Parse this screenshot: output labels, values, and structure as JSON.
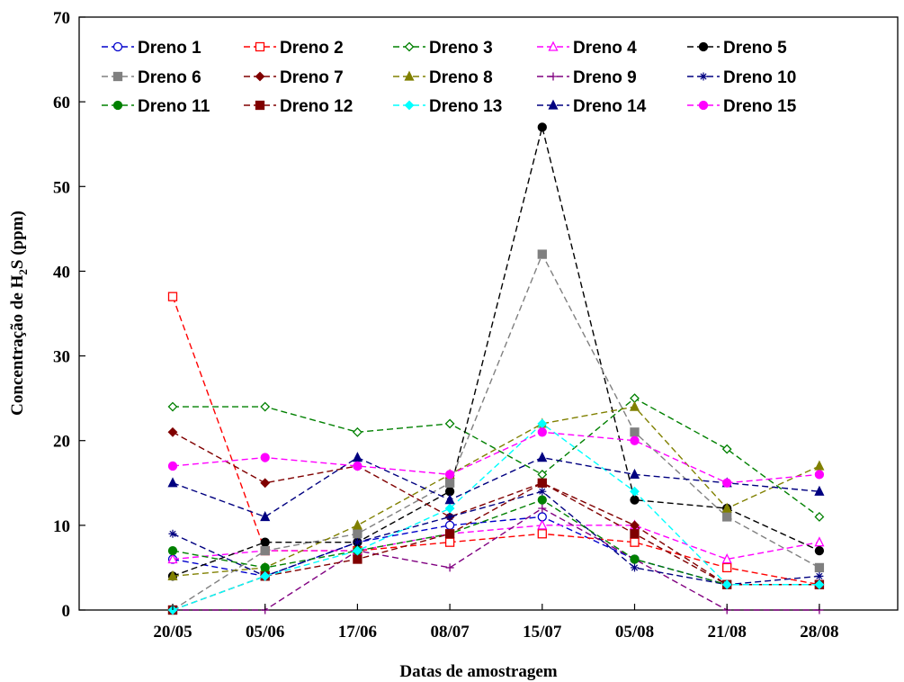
{
  "chart_data": {
    "type": "line",
    "title": "",
    "xlabel": "Datas de amostragem",
    "ylabel": {
      "prefix": "Concentração de H",
      "subscript": "2",
      "suffix": "S (ppm)"
    },
    "categories": [
      "20/05",
      "05/06",
      "17/06",
      "08/07",
      "15/07",
      "05/08",
      "21/08",
      "28/08"
    ],
    "ylim": [
      0,
      70
    ],
    "yticks": [
      0,
      10,
      20,
      30,
      40,
      50,
      60,
      70
    ],
    "grid": false,
    "legend_position": "top-left",
    "series": [
      {
        "name": "Dreno 1",
        "color": "#0000cc",
        "marker": "circle-open",
        "values": [
          6,
          4,
          8,
          10,
          11,
          6,
          3,
          3
        ]
      },
      {
        "name": "Dreno 2",
        "color": "#ff0000",
        "marker": "square-open",
        "values": [
          37,
          7,
          7,
          8,
          9,
          8,
          5,
          3
        ]
      },
      {
        "name": "Dreno 3",
        "color": "#008000",
        "marker": "diamond-open",
        "values": [
          24,
          24,
          21,
          22,
          16,
          25,
          19,
          11
        ]
      },
      {
        "name": "Dreno 4",
        "color": "#ff00ff",
        "marker": "triangle-open",
        "values": [
          6,
          7,
          7,
          9,
          10,
          10,
          6,
          8
        ]
      },
      {
        "name": "Dreno 5",
        "color": "#000000",
        "marker": "circle",
        "values": [
          4,
          8,
          8,
          14,
          57,
          13,
          12,
          7
        ]
      },
      {
        "name": "Dreno 6",
        "color": "#808080",
        "marker": "square",
        "values": [
          0,
          7,
          9,
          15,
          42,
          21,
          11,
          5
        ]
      },
      {
        "name": "Dreno 7",
        "color": "#800000",
        "marker": "diamond",
        "values": [
          21,
          15,
          17,
          11,
          15,
          10,
          3,
          3
        ]
      },
      {
        "name": "Dreno 8",
        "color": "#808000",
        "marker": "triangle",
        "values": [
          4,
          5,
          10,
          16,
          22,
          24,
          12,
          17
        ]
      },
      {
        "name": "Dreno 9",
        "color": "#800080",
        "marker": "plus",
        "values": [
          0,
          0,
          7,
          5,
          12,
          6,
          0,
          0
        ]
      },
      {
        "name": "Dreno 10",
        "color": "#000080",
        "marker": "asterisk",
        "values": [
          9,
          4,
          8,
          11,
          14,
          5,
          3,
          4
        ]
      },
      {
        "name": "Dreno 11",
        "color": "#008000",
        "marker": "circle",
        "values": [
          7,
          5,
          7,
          9,
          13,
          6,
          3,
          3
        ]
      },
      {
        "name": "Dreno 12",
        "color": "#800000",
        "marker": "square",
        "values": [
          0,
          4,
          6,
          9,
          15,
          9,
          3,
          3
        ]
      },
      {
        "name": "Dreno 13",
        "color": "#00ffff",
        "marker": "diamond",
        "values": [
          0,
          4,
          7,
          12,
          22,
          14,
          3,
          3
        ]
      },
      {
        "name": "Dreno 14",
        "color": "#000080",
        "marker": "triangle",
        "values": [
          15,
          11,
          18,
          13,
          18,
          16,
          15,
          14
        ]
      },
      {
        "name": "Dreno 15",
        "color": "#ff00ff",
        "marker": "circle",
        "values": [
          17,
          18,
          17,
          16,
          21,
          20,
          15,
          16
        ]
      }
    ]
  }
}
